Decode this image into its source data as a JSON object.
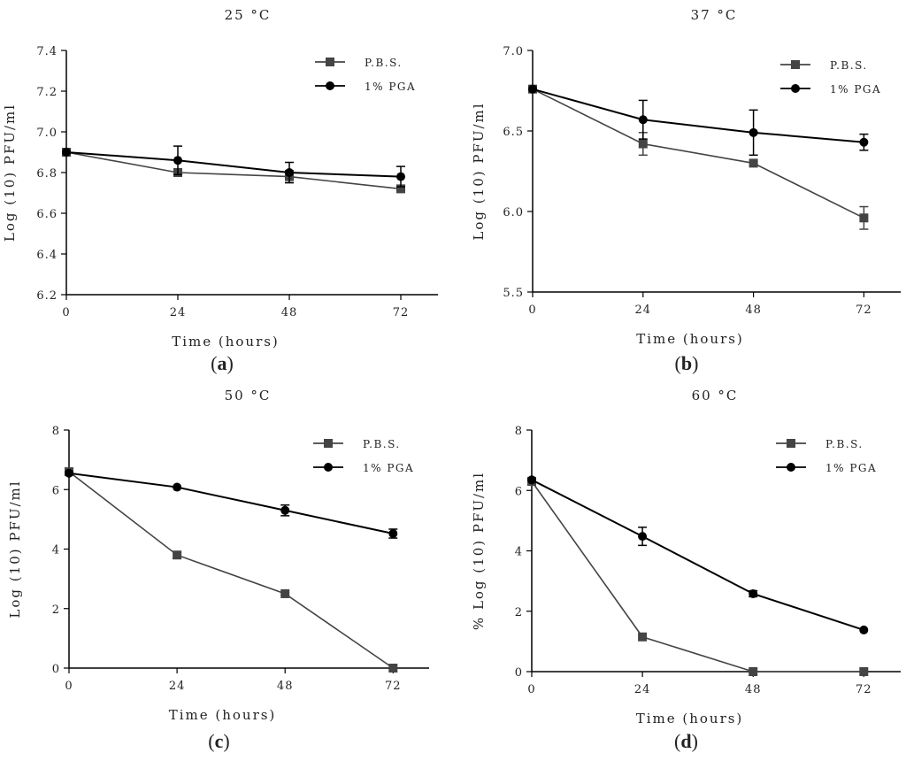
{
  "chart_data": [
    {
      "type": "line",
      "panel_label": "a",
      "title": "25 °C",
      "xlabel": "Time (hours)",
      "ylabel": "Log (10) PFU/ml",
      "x": [
        0,
        24,
        48,
        72
      ],
      "xticks": [
        "0",
        "24",
        "48",
        "72"
      ],
      "yticks": [
        "6.2",
        "6.4",
        "6.6",
        "6.8",
        "7.0",
        "7.2",
        "7.4"
      ],
      "ylim": [
        6.2,
        7.4
      ],
      "xlim": [
        0,
        80
      ],
      "legend_position": "top-right",
      "series": [
        {
          "name": "P.B.S.",
          "marker": "square",
          "color": "#444444",
          "values": [
            6.9,
            6.8,
            6.78,
            6.72
          ],
          "errors": [
            0,
            0,
            0.03,
            0
          ]
        },
        {
          "name": "1% PGA",
          "marker": "circle",
          "color": "#000000",
          "values": [
            6.9,
            6.86,
            6.8,
            6.78
          ],
          "errors": [
            0,
            0.07,
            0.05,
            0.05
          ]
        }
      ]
    },
    {
      "type": "line",
      "panel_label": "b",
      "title": "37 °C",
      "xlabel": "Time (hours)",
      "ylabel": "Log (10) PFU/ml",
      "x": [
        0,
        24,
        48,
        72
      ],
      "xticks": [
        "0",
        "24",
        "48",
        "72"
      ],
      "yticks": [
        "5.5",
        "6.0",
        "6.5",
        "7.0"
      ],
      "ylim": [
        5.5,
        7.0
      ],
      "xlim": [
        0,
        80
      ],
      "legend_position": "top-right",
      "series": [
        {
          "name": "P.B.S.",
          "marker": "square",
          "color": "#444444",
          "values": [
            6.76,
            6.42,
            6.3,
            5.96
          ],
          "errors": [
            0,
            0.07,
            0,
            0.07
          ]
        },
        {
          "name": "1% PGA",
          "marker": "circle",
          "color": "#000000",
          "values": [
            6.76,
            6.57,
            6.49,
            6.43
          ],
          "errors": [
            0,
            0.12,
            0.14,
            0.05
          ]
        }
      ]
    },
    {
      "type": "line",
      "panel_label": "c",
      "title": "50 °C",
      "xlabel": "Time (hours)",
      "ylabel": "Log (10) PFU/ml",
      "x": [
        0,
        24,
        48,
        72
      ],
      "xticks": [
        "0",
        "24",
        "48",
        "72"
      ],
      "yticks": [
        "0",
        "2",
        "4",
        "6",
        "8"
      ],
      "ylim": [
        0,
        8
      ],
      "xlim": [
        0,
        80
      ],
      "legend_position": "top-right",
      "series": [
        {
          "name": "P.B.S.",
          "marker": "square",
          "color": "#444444",
          "values": [
            6.6,
            3.8,
            2.5,
            0.0
          ],
          "errors": [
            0.1,
            0.1,
            0,
            0
          ]
        },
        {
          "name": "1% PGA",
          "marker": "circle",
          "color": "#000000",
          "values": [
            6.55,
            6.08,
            5.3,
            4.52
          ],
          "errors": [
            0,
            0,
            0.18,
            0.15
          ]
        }
      ]
    },
    {
      "type": "line",
      "panel_label": "d",
      "title": "60 °C",
      "xlabel": "Time (hours)",
      "ylabel": "% Log (10) PFU/ml",
      "x": [
        0,
        24,
        48,
        72
      ],
      "xticks": [
        "0",
        "24",
        "48",
        "72"
      ],
      "yticks": [
        "0",
        "2",
        "4",
        "6",
        "8"
      ],
      "ylim": [
        0,
        8
      ],
      "xlim": [
        0,
        80
      ],
      "legend_position": "top-right",
      "series": [
        {
          "name": "P.B.S.",
          "marker": "square",
          "color": "#444444",
          "values": [
            6.3,
            1.15,
            0.0,
            0.0
          ],
          "errors": [
            0,
            0,
            0,
            0
          ]
        },
        {
          "name": "1% PGA",
          "marker": "circle",
          "color": "#000000",
          "values": [
            6.35,
            4.48,
            2.58,
            1.38
          ],
          "errors": [
            0,
            0.3,
            0.1,
            0
          ]
        }
      ]
    }
  ]
}
